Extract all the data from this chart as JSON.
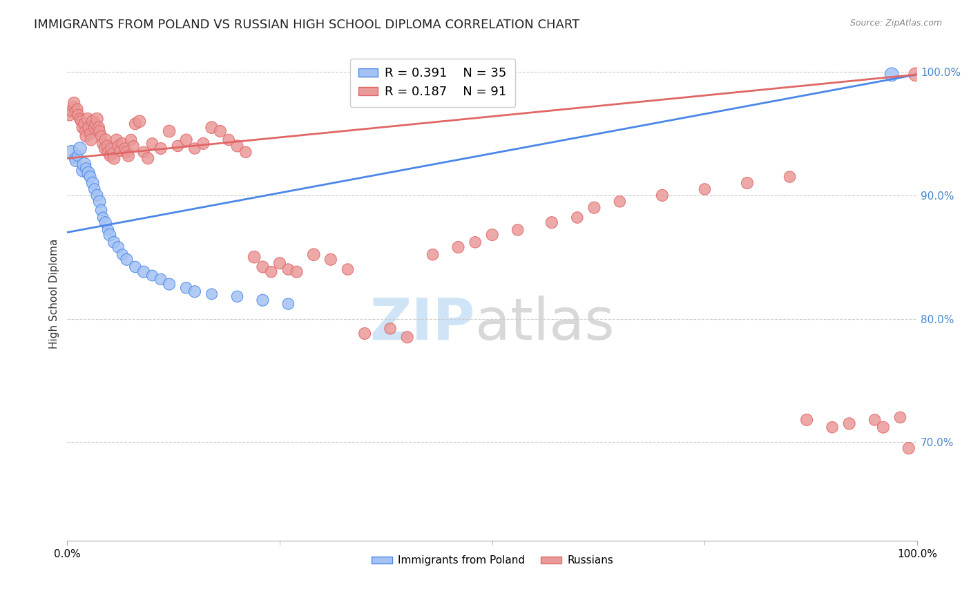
{
  "title": "IMMIGRANTS FROM POLAND VS RUSSIAN HIGH SCHOOL DIPLOMA CORRELATION CHART",
  "source": "Source: ZipAtlas.com",
  "ylabel": "High School Diploma",
  "xlim": [
    0.0,
    1.0
  ],
  "ylim": [
    0.62,
    1.02
  ],
  "yticks": [
    0.7,
    0.8,
    0.9,
    1.0
  ],
  "ytick_labels": [
    "70.0%",
    "80.0%",
    "90.0%",
    "100.0%"
  ],
  "xtick_labels": [
    "0.0%",
    "100.0%"
  ],
  "legend_blue_R": "R = 0.391",
  "legend_blue_N": "N = 35",
  "legend_pink_R": "R = 0.187",
  "legend_pink_N": "N = 91",
  "blue_color": "#a4c2f4",
  "pink_color": "#ea9999",
  "blue_line_color": "#4a86e8",
  "pink_line_color": "#e06666",
  "blue_trend_color": "#4a86e8",
  "pink_trend_color": "#e06666",
  "background_color": "#ffffff",
  "grid_color": "#cccccc",
  "blue_scatter_x": [
    0.005,
    0.008,
    0.01,
    0.012,
    0.015,
    0.018,
    0.02,
    0.022,
    0.025,
    0.027,
    0.03,
    0.032,
    0.035,
    0.038,
    0.04,
    0.042,
    0.045,
    0.048,
    0.05,
    0.055,
    0.06,
    0.065,
    0.07,
    0.08,
    0.09,
    0.1,
    0.11,
    0.12,
    0.14,
    0.15,
    0.17,
    0.2,
    0.23,
    0.26,
    0.97
  ],
  "blue_scatter_y": [
    0.935,
    0.93,
    0.928,
    0.932,
    0.938,
    0.92,
    0.925,
    0.922,
    0.918,
    0.915,
    0.91,
    0.905,
    0.9,
    0.895,
    0.888,
    0.882,
    0.878,
    0.872,
    0.868,
    0.862,
    0.858,
    0.852,
    0.848,
    0.842,
    0.838,
    0.835,
    0.832,
    0.828,
    0.825,
    0.822,
    0.82,
    0.818,
    0.815,
    0.812,
    0.998
  ],
  "blue_scatter_sizes": [
    200,
    100,
    150,
    120,
    180,
    160,
    200,
    130,
    180,
    150,
    160,
    140,
    150,
    160,
    140,
    130,
    150,
    140,
    160,
    150,
    140,
    130,
    150,
    140,
    150,
    130,
    140,
    150,
    140,
    150,
    130,
    140,
    150,
    140,
    200
  ],
  "pink_scatter_x": [
    0.003,
    0.005,
    0.007,
    0.008,
    0.01,
    0.012,
    0.013,
    0.015,
    0.017,
    0.018,
    0.02,
    0.021,
    0.022,
    0.024,
    0.025,
    0.027,
    0.028,
    0.03,
    0.032,
    0.033,
    0.035,
    0.037,
    0.038,
    0.04,
    0.042,
    0.044,
    0.045,
    0.047,
    0.048,
    0.05,
    0.052,
    0.054,
    0.055,
    0.058,
    0.06,
    0.062,
    0.065,
    0.068,
    0.07,
    0.072,
    0.075,
    0.078,
    0.08,
    0.085,
    0.09,
    0.095,
    0.1,
    0.11,
    0.12,
    0.13,
    0.14,
    0.15,
    0.16,
    0.17,
    0.18,
    0.19,
    0.2,
    0.21,
    0.22,
    0.23,
    0.24,
    0.25,
    0.26,
    0.27,
    0.29,
    0.31,
    0.33,
    0.35,
    0.38,
    0.4,
    0.43,
    0.46,
    0.48,
    0.5,
    0.53,
    0.57,
    0.6,
    0.62,
    0.65,
    0.7,
    0.75,
    0.8,
    0.85,
    0.87,
    0.9,
    0.92,
    0.95,
    0.96,
    0.98,
    0.99,
    0.998
  ],
  "pink_scatter_y": [
    0.965,
    0.968,
    0.972,
    0.975,
    0.968,
    0.97,
    0.965,
    0.962,
    0.96,
    0.955,
    0.958,
    0.952,
    0.948,
    0.962,
    0.955,
    0.95,
    0.945,
    0.96,
    0.955,
    0.958,
    0.962,
    0.955,
    0.952,
    0.948,
    0.942,
    0.938,
    0.945,
    0.94,
    0.935,
    0.932,
    0.938,
    0.934,
    0.93,
    0.945,
    0.94,
    0.936,
    0.942,
    0.938,
    0.935,
    0.932,
    0.945,
    0.94,
    0.958,
    0.96,
    0.935,
    0.93,
    0.942,
    0.938,
    0.952,
    0.94,
    0.945,
    0.938,
    0.942,
    0.955,
    0.952,
    0.945,
    0.94,
    0.935,
    0.85,
    0.842,
    0.838,
    0.845,
    0.84,
    0.838,
    0.852,
    0.848,
    0.84,
    0.788,
    0.792,
    0.785,
    0.852,
    0.858,
    0.862,
    0.868,
    0.872,
    0.878,
    0.882,
    0.89,
    0.895,
    0.9,
    0.905,
    0.91,
    0.915,
    0.718,
    0.712,
    0.715,
    0.718,
    0.712,
    0.72,
    0.695,
    0.998
  ],
  "pink_scatter_sizes": [
    140,
    120,
    130,
    150,
    140,
    130,
    150,
    140,
    160,
    150,
    140,
    130,
    150,
    160,
    140,
    130,
    150,
    160,
    150,
    140,
    160,
    150,
    140,
    130,
    150,
    140,
    160,
    150,
    140,
    130,
    150,
    140,
    160,
    150,
    140,
    130,
    150,
    140,
    160,
    150,
    140,
    130,
    150,
    160,
    140,
    150,
    140,
    150,
    160,
    140,
    150,
    140,
    150,
    160,
    150,
    140,
    150,
    140,
    160,
    150,
    140,
    150,
    140,
    150,
    160,
    150,
    140,
    150,
    140,
    150,
    140,
    150,
    140,
    150,
    140,
    150,
    140,
    150,
    140,
    150,
    140,
    150,
    140,
    150,
    140,
    150,
    140,
    150,
    140,
    150,
    200
  ],
  "blue_trendline_x": [
    0.0,
    1.0
  ],
  "blue_trendline_y": [
    0.87,
    0.998
  ],
  "pink_trendline_x": [
    0.0,
    1.0
  ],
  "pink_trendline_y": [
    0.93,
    0.998
  ],
  "title_fontsize": 13,
  "axis_label_fontsize": 11,
  "tick_fontsize": 11,
  "legend_fontsize": 13,
  "watermark_zip_color": "#d0e4f7",
  "watermark_atlas_color": "#d8d8d8",
  "watermark_fontsize": 60
}
